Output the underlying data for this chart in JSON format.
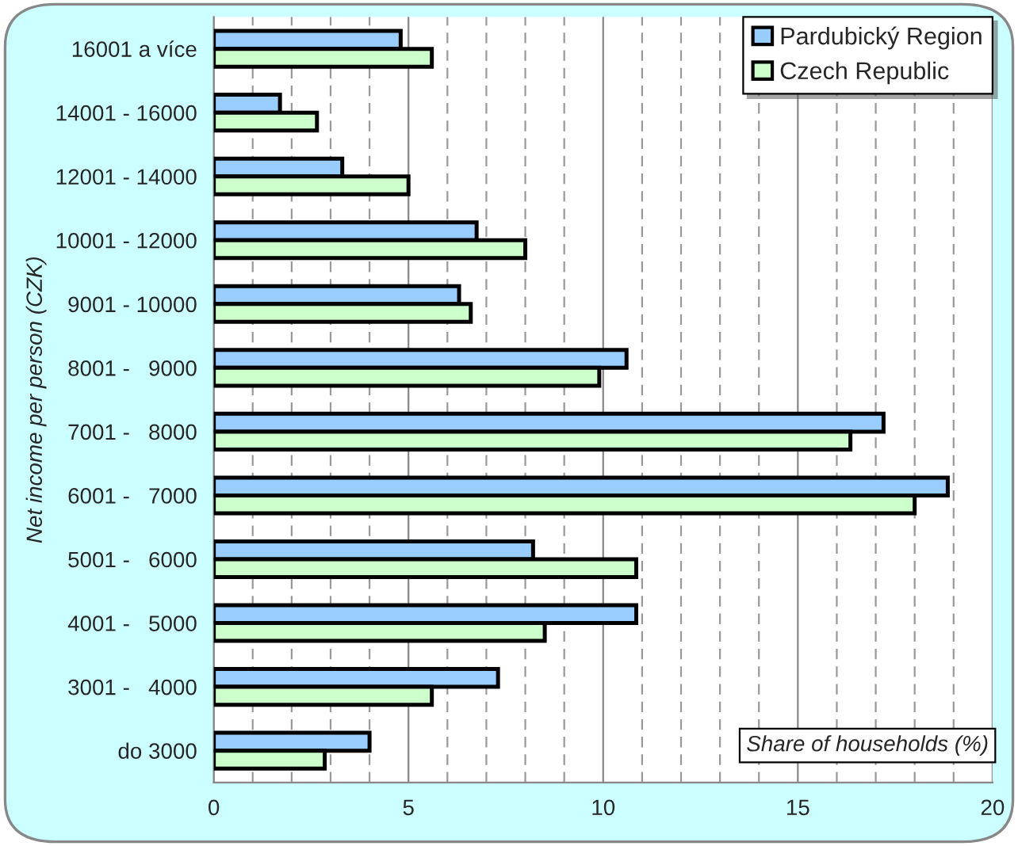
{
  "chart_data": {
    "type": "bar",
    "orientation": "horizontal",
    "xlabel": "Share of households (%)",
    "ylabel": "Net income per person (CZK)",
    "categories": [
      "16001 a více",
      "14001 - 16000",
      "12001 - 14000",
      "10001 - 12000",
      "9001 - 10000",
      "8001 -   9000",
      "7001 -   8000",
      "6001 -   7000",
      "5001 -   6000",
      "4001 -   5000",
      "3001 -   4000",
      "do 3000"
    ],
    "series": [
      {
        "name": "Pardubický Region",
        "color": "#99ccff",
        "values": [
          4.8,
          1.7,
          3.3,
          6.75,
          6.3,
          10.6,
          17.2,
          18.85,
          8.2,
          10.85,
          7.3,
          4.0
        ]
      },
      {
        "name": "Czech Republic",
        "color": "#ccffcc",
        "values": [
          5.6,
          2.65,
          5.0,
          8.0,
          6.6,
          9.9,
          16.35,
          18.0,
          10.85,
          8.5,
          5.6,
          2.85
        ]
      }
    ],
    "xlim": [
      0,
      20
    ],
    "xticks": [
      0,
      5,
      10,
      15,
      20
    ],
    "grid": "x",
    "legend": "top right"
  }
}
